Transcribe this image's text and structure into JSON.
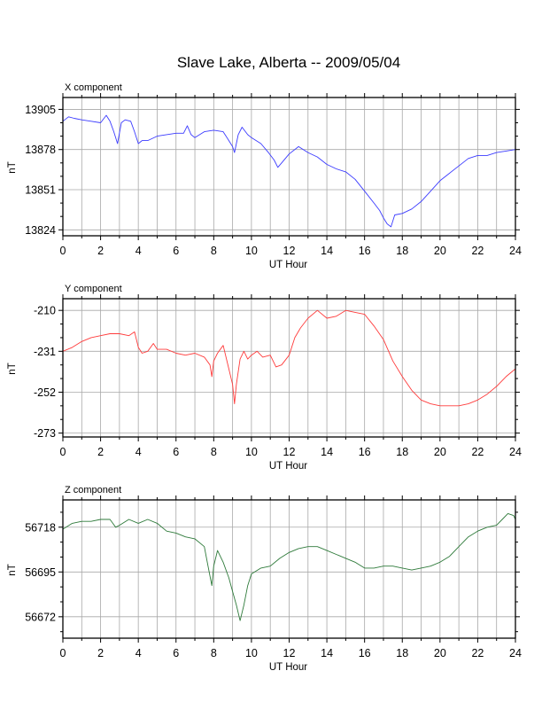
{
  "title": "Slave Lake, Alberta -- 2009/05/04",
  "chart_data": [
    {
      "type": "line",
      "title": "X component",
      "xlabel": "UT Hour",
      "ylabel": "nT",
      "xlim": [
        0,
        24
      ],
      "ylim": [
        13820,
        13913
      ],
      "xticks": [
        0,
        2,
        4,
        6,
        8,
        10,
        12,
        14,
        16,
        18,
        20,
        22,
        24
      ],
      "yticks": [
        13824,
        13851,
        13878,
        13905
      ],
      "grid": true,
      "color": "#3b3bff",
      "series": [
        {
          "x": [
            0,
            0.3,
            0.6,
            1.0,
            1.5,
            2.0,
            2.3,
            2.5,
            2.7,
            2.9,
            3.1,
            3.3,
            3.6,
            3.8,
            3.9,
            4.0,
            4.2,
            4.5,
            5.0,
            5.5,
            6.0,
            6.4,
            6.6,
            6.8,
            7.0,
            7.5,
            8.0,
            8.5,
            8.8,
            9.0,
            9.1,
            9.3,
            9.5,
            9.8,
            10.0,
            10.5,
            10.9,
            11.2,
            11.4,
            11.6,
            12.0,
            12.5,
            13.0,
            13.5,
            14.0,
            14.5,
            15.0,
            15.5,
            16.0,
            16.5,
            16.8,
            17.0,
            17.2,
            17.4,
            17.6,
            18.0,
            18.5,
            19.0,
            19.5,
            20.0,
            20.5,
            21.0,
            21.5,
            22.0,
            22.5,
            23.0,
            23.5,
            24.0
          ],
          "y": [
            13897,
            13900,
            13899,
            13898,
            13897,
            13896,
            13901,
            13897,
            13890,
            13882,
            13896,
            13898,
            13897,
            13890,
            13886,
            13882,
            13884,
            13884,
            13887,
            13888,
            13889,
            13889,
            13894,
            13888,
            13886,
            13890,
            13891,
            13890,
            13884,
            13880,
            13876,
            13888,
            13893,
            13888,
            13886,
            13882,
            13876,
            13871,
            13866,
            13869,
            13875,
            13880,
            13876,
            13873,
            13868,
            13865,
            13863,
            13858,
            13850,
            13842,
            13837,
            13832,
            13828,
            13826,
            13834,
            13835,
            13838,
            13843,
            13850,
            13857,
            13862,
            13867,
            13872,
            13874,
            13874,
            13876,
            13877,
            13878
          ]
        }
      ]
    },
    {
      "type": "line",
      "title": "Y component",
      "xlabel": "UT Hour",
      "ylabel": "nT",
      "xlim": [
        0,
        24
      ],
      "ylim": [
        -275,
        -204
      ],
      "xticks": [
        0,
        2,
        4,
        6,
        8,
        10,
        12,
        14,
        16,
        18,
        20,
        22,
        24
      ],
      "yticks": [
        -210,
        -231,
        -252,
        -273
      ],
      "grid": true,
      "color": "#ff3b3b",
      "series": [
        {
          "x": [
            0,
            0.5,
            1.0,
            1.5,
            2.0,
            2.5,
            3.0,
            3.5,
            3.8,
            4.0,
            4.2,
            4.5,
            4.8,
            5.0,
            5.5,
            6.0,
            6.5,
            7.0,
            7.5,
            7.8,
            7.9,
            8.0,
            8.2,
            8.5,
            8.8,
            9.0,
            9.1,
            9.2,
            9.4,
            9.6,
            9.8,
            10.0,
            10.3,
            10.6,
            11.0,
            11.3,
            11.6,
            12.0,
            12.3,
            12.6,
            13.0,
            13.5,
            14.0,
            14.5,
            15.0,
            15.5,
            16.0,
            16.5,
            17.0,
            17.5,
            18.0,
            18.5,
            19.0,
            19.5,
            20.0,
            20.5,
            21.0,
            21.5,
            22.0,
            22.5,
            23.0,
            23.5,
            24.0
          ],
          "y": [
            -231,
            -229,
            -226,
            -224,
            -223,
            -222,
            -222,
            -223,
            -221,
            -229,
            -232,
            -231,
            -227,
            -230,
            -230,
            -232,
            -233,
            -232,
            -234,
            -238,
            -244,
            -236,
            -232,
            -228,
            -240,
            -248,
            -258,
            -248,
            -235,
            -231,
            -235,
            -233,
            -231,
            -234,
            -233,
            -239,
            -238,
            -233,
            -224,
            -219,
            -214,
            -210,
            -214,
            -213,
            -210,
            -211,
            -212,
            -218,
            -225,
            -236,
            -244,
            -251,
            -256,
            -258,
            -259,
            -259,
            -259,
            -258,
            -256,
            -253,
            -249,
            -244,
            -240
          ]
        }
      ]
    },
    {
      "type": "line",
      "title": "Z component",
      "xlabel": "UT Hour",
      "ylabel": "nT",
      "xlim": [
        0,
        24
      ],
      "ylim": [
        56661,
        56732
      ],
      "xticks": [
        0,
        2,
        4,
        6,
        8,
        10,
        12,
        14,
        16,
        18,
        20,
        22,
        24
      ],
      "yticks": [
        56672,
        56695,
        56718
      ],
      "grid": true,
      "color": "#2e7a3a",
      "series": [
        {
          "x": [
            0,
            0.5,
            1.0,
            1.5,
            2.0,
            2.5,
            2.8,
            3.0,
            3.5,
            4.0,
            4.5,
            5.0,
            5.5,
            6.0,
            6.5,
            7.0,
            7.5,
            7.7,
            7.9,
            8.0,
            8.2,
            8.5,
            8.8,
            9.0,
            9.2,
            9.4,
            9.6,
            9.8,
            10.0,
            10.5,
            11.0,
            11.5,
            12.0,
            12.5,
            13.0,
            13.5,
            14.0,
            14.5,
            15.0,
            15.5,
            16.0,
            16.5,
            17.0,
            17.5,
            18.0,
            18.5,
            19.0,
            19.5,
            20.0,
            20.5,
            21.0,
            21.5,
            22.0,
            22.5,
            23.0,
            23.3,
            23.6,
            23.9,
            24.0
          ],
          "y": [
            56717,
            56720,
            56721,
            56721,
            56722,
            56722,
            56718,
            56719,
            56722,
            56720,
            56722,
            56720,
            56716,
            56715,
            56713,
            56712,
            56708,
            56698,
            56688,
            56698,
            56706,
            56700,
            56692,
            56685,
            56678,
            56670,
            56678,
            56688,
            56694,
            56697,
            56698,
            56702,
            56705,
            56707,
            56708,
            56708,
            56706,
            56704,
            56702,
            56700,
            56697,
            56697,
            56698,
            56698,
            56697,
            56696,
            56697,
            56698,
            56700,
            56703,
            56708,
            56713,
            56716,
            56718,
            56719,
            56722,
            56725,
            56724,
            56722
          ]
        }
      ]
    }
  ]
}
